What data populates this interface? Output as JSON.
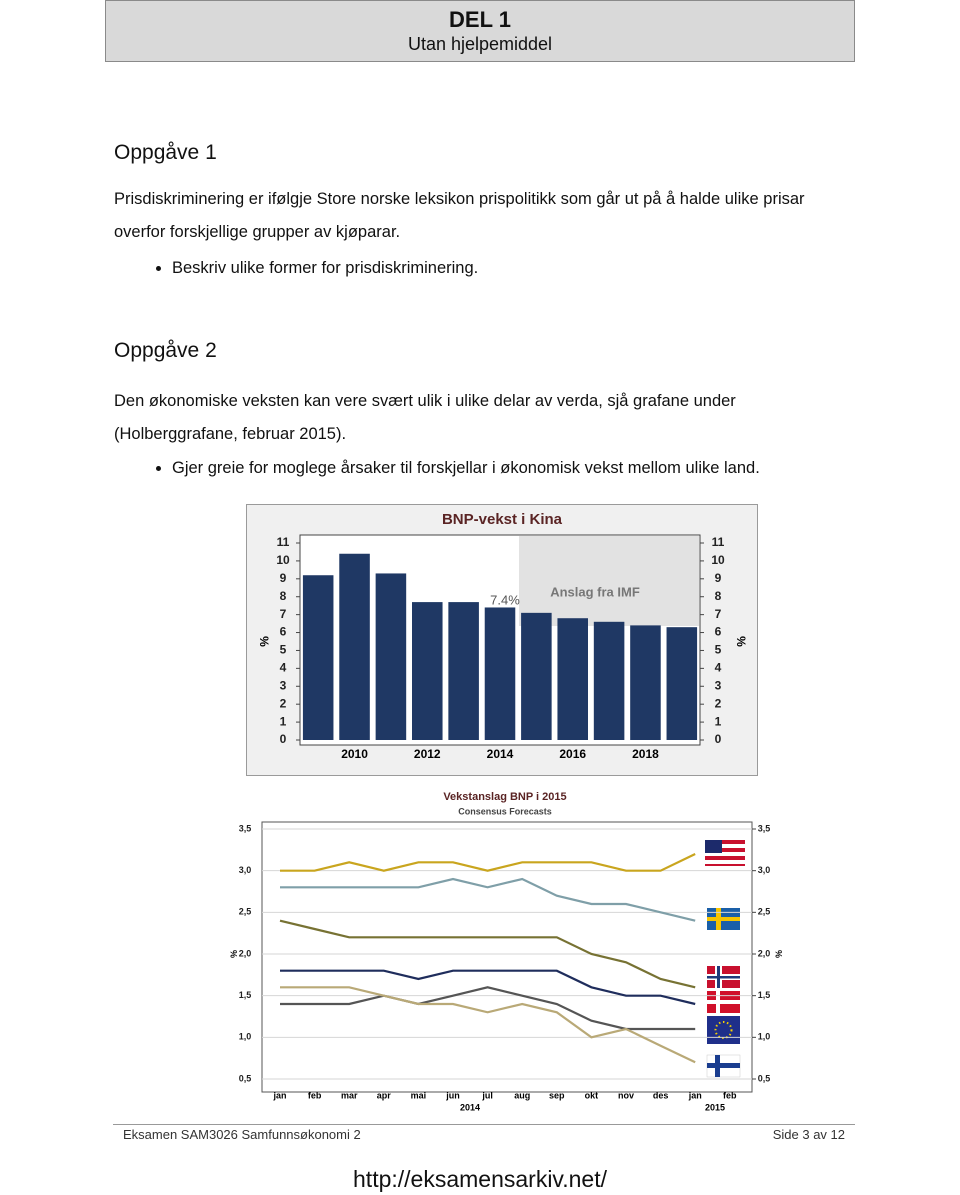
{
  "header": {
    "title": "DEL 1",
    "subtitle": "Utan hjelpemiddel"
  },
  "tasks": [
    {
      "heading": "Oppgåve 1",
      "text": "Prisdiskriminering er ifølgje Store norske leksikon prispolitikk som går ut på å halde ulike prisar overfor forskjellige grupper av kjøparar.",
      "bullet": "Beskriv ulike former for prisdiskriminering."
    },
    {
      "heading": "Oppgåve 2",
      "text": "Den økonomiske veksten kan vere svært ulik i ulike delar av verda, sjå grafane under (Holberggrafane, februar 2015).",
      "bullet": "Gjer greie for moglege årsaker til forskjellar i økonomisk vekst mellom ulike land."
    }
  ],
  "chart_data": [
    {
      "type": "bar",
      "title": "BNP-vekst i Kina",
      "categories": [
        null,
        "2010",
        null,
        "2012",
        null,
        "2014",
        null,
        "2016",
        null,
        "2018",
        null
      ],
      "values": [
        9.2,
        10.4,
        9.3,
        7.7,
        7.7,
        7.4,
        7.1,
        6.8,
        6.6,
        6.4,
        6.3
      ],
      "color": "#1f3864",
      "ylim": [
        0,
        11
      ],
      "yticks": [
        0,
        1,
        2,
        3,
        4,
        5,
        6,
        7,
        8,
        9,
        10,
        11
      ],
      "y2lim": [
        0,
        11
      ],
      "y2ticks": [
        0,
        1,
        2,
        3,
        4,
        5,
        6,
        7,
        8,
        9,
        10,
        11
      ],
      "ylabel": "%",
      "y2label": "%",
      "annotations": [
        "7.4%",
        "Anslag fra IMF"
      ],
      "grid": false
    },
    {
      "type": "line",
      "title": "Vekstanslag BNP i 2015",
      "subtitle": "Consensus Forecasts",
      "categories": [
        "jan",
        "feb",
        "mar",
        "apr",
        "mai",
        "jun",
        "jul",
        "aug",
        "sep",
        "okt",
        "nov",
        "des",
        "jan",
        "feb"
      ],
      "year_labels": [
        "2014",
        "2015"
      ],
      "series": [
        {
          "color": "#c9a51e",
          "values": [
            3.0,
            3.0,
            3.1,
            3.0,
            3.1,
            3.1,
            3.0,
            3.1,
            3.1,
            3.1,
            3.0,
            3.0,
            3.2,
            null
          ]
        },
        {
          "color": "#7f9fa8",
          "values": [
            2.8,
            2.8,
            2.8,
            2.8,
            2.8,
            2.9,
            2.8,
            2.9,
            2.7,
            2.6,
            2.6,
            2.5,
            2.4,
            null
          ]
        },
        {
          "color": "#777233",
          "values": [
            2.4,
            2.3,
            2.2,
            2.2,
            2.2,
            2.2,
            2.2,
            2.2,
            2.2,
            2.0,
            1.9,
            1.7,
            1.6,
            null
          ]
        },
        {
          "color": "#1f2d5c",
          "values": [
            1.8,
            1.8,
            1.8,
            1.8,
            1.7,
            1.8,
            1.8,
            1.8,
            1.8,
            1.6,
            1.5,
            1.5,
            1.4,
            null
          ]
        },
        {
          "color": "#555555",
          "values": [
            1.4,
            1.4,
            1.4,
            1.5,
            1.4,
            1.5,
            1.6,
            1.5,
            1.4,
            1.2,
            1.1,
            1.1,
            1.1,
            null
          ]
        },
        {
          "color": "#b9a977",
          "values": [
            1.6,
            1.6,
            1.6,
            1.5,
            1.4,
            1.4,
            1.3,
            1.4,
            1.3,
            1.0,
            1.1,
            0.9,
            0.7,
            null
          ]
        }
      ],
      "ylim": [
        0.5,
        3.5
      ],
      "yticks": [
        {
          "value": 0.5,
          "label": "0,5"
        },
        {
          "value": 1.0,
          "label": "1,0"
        },
        {
          "value": 1.5,
          "label": "1,5"
        },
        {
          "value": 2.0,
          "label": "2,0"
        },
        {
          "value": 2.5,
          "label": "2,5"
        },
        {
          "value": 3.0,
          "label": "3,0"
        },
        {
          "value": 3.5,
          "label": "3,5"
        }
      ],
      "y2lim": [
        0.5,
        3.5
      ],
      "y2ticks": [
        {
          "value": 0.5,
          "label": "0,5"
        },
        {
          "value": 1.0,
          "label": "1,0"
        },
        {
          "value": 1.5,
          "label": "1,5"
        },
        {
          "value": 2.0,
          "label": "2,0"
        },
        {
          "value": 2.5,
          "label": "2,5"
        },
        {
          "value": 3.0,
          "label": "3,0"
        },
        {
          "value": 3.5,
          "label": "3,5"
        }
      ],
      "ylabel": "%",
      "y2label": "%",
      "grid": true
    }
  ],
  "footer": {
    "left": "Eksamen SAM3026 Samfunnsøkonomi 2",
    "right": "Side 3 av 12",
    "url": "http://eksamensarkiv.net/"
  }
}
